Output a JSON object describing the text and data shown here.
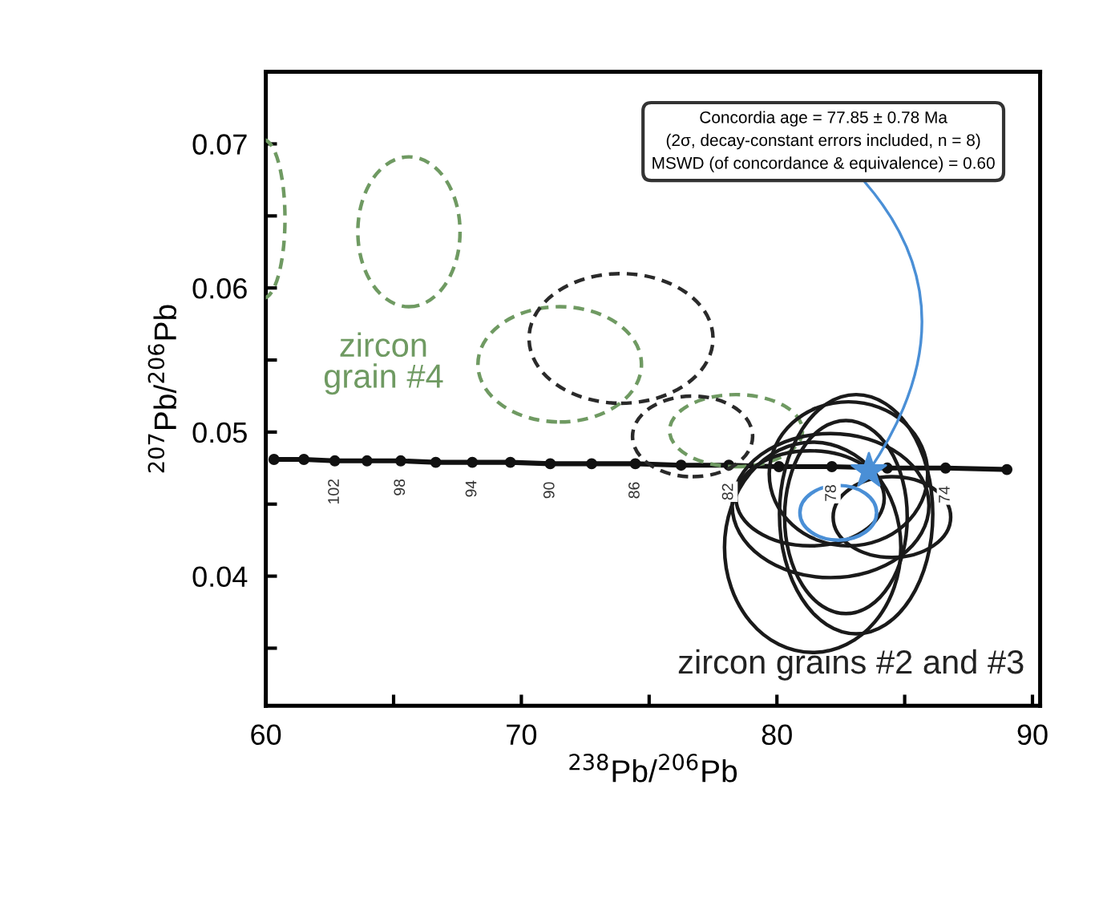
{
  "chart_data": {
    "type": "line",
    "xlabel": "$^{238}$Pb/$^{206}$Pb",
    "ylabel": "$^{207}$Pb/$^{206}$Pb",
    "xlim": [
      60,
      90.3
    ],
    "ylim": [
      0.031,
      0.075
    ],
    "xticks": [
      60,
      {
        "value": 65,
        "label": null
      },
      70,
      {
        "value": 75,
        "label": null
      },
      80,
      {
        "value": 85,
        "label": null
      },
      90
    ],
    "yticks": [
      {
        "value": 0.035,
        "label": null
      },
      0.04,
      {
        "value": 0.045,
        "label": null
      },
      0.05,
      {
        "value": 0.055,
        "label": null
      },
      0.06,
      {
        "value": 0.065,
        "label": null
      },
      0.07
    ],
    "grid": false,
    "series": [
      {
        "color": "#111111",
        "marker": "circle",
        "line_style": "solid",
        "x": [
          60.32,
          61.49,
          62.7,
          63.96,
          65.28,
          66.65,
          68.08,
          69.57,
          71.13,
          72.75,
          74.46,
          76.25,
          78.12,
          80.08,
          82.15,
          84.32,
          86.6,
          89.0
        ],
        "values": [
          0.0481,
          0.0481,
          0.048,
          0.048,
          0.048,
          0.0479,
          0.0479,
          0.0479,
          0.0478,
          0.0478,
          0.0478,
          0.0477,
          0.0477,
          0.0476,
          0.0476,
          0.0475,
          0.0475,
          0.0474
        ]
      },
      {
        "type": "scatter",
        "color": "#4a8fd6",
        "marker": "star",
        "x": [
          83.6
        ],
        "values": [
          0.0473
        ]
      }
    ],
    "annotations": [
      {
        "text": "Concordia age = 77.85 ± 0.78 Ma\n(2σ, decay-constant errors included, n = 8)\nMSWD (of concordance & equivalence) = 0.60",
        "x": 83.6,
        "y": 0.0473
      },
      {
        "text": "102",
        "x": 62.7,
        "y": 0.048
      },
      {
        "text": "98",
        "x": 65.28,
        "y": 0.048
      },
      {
        "text": "94",
        "x": 68.08,
        "y": 0.0479
      },
      {
        "text": "90",
        "x": 71.13,
        "y": 0.0478
      },
      {
        "text": "86",
        "x": 74.46,
        "y": 0.0478
      },
      {
        "text": "82",
        "x": 78.12,
        "y": 0.0477
      },
      {
        "text": "78",
        "x": 82.15,
        "y": 0.0476
      },
      {
        "text": "74",
        "x": 86.6,
        "y": 0.0475
      },
      "zircon\ngrain #4",
      "zircon grains #2 and #3"
    ]
  }
}
